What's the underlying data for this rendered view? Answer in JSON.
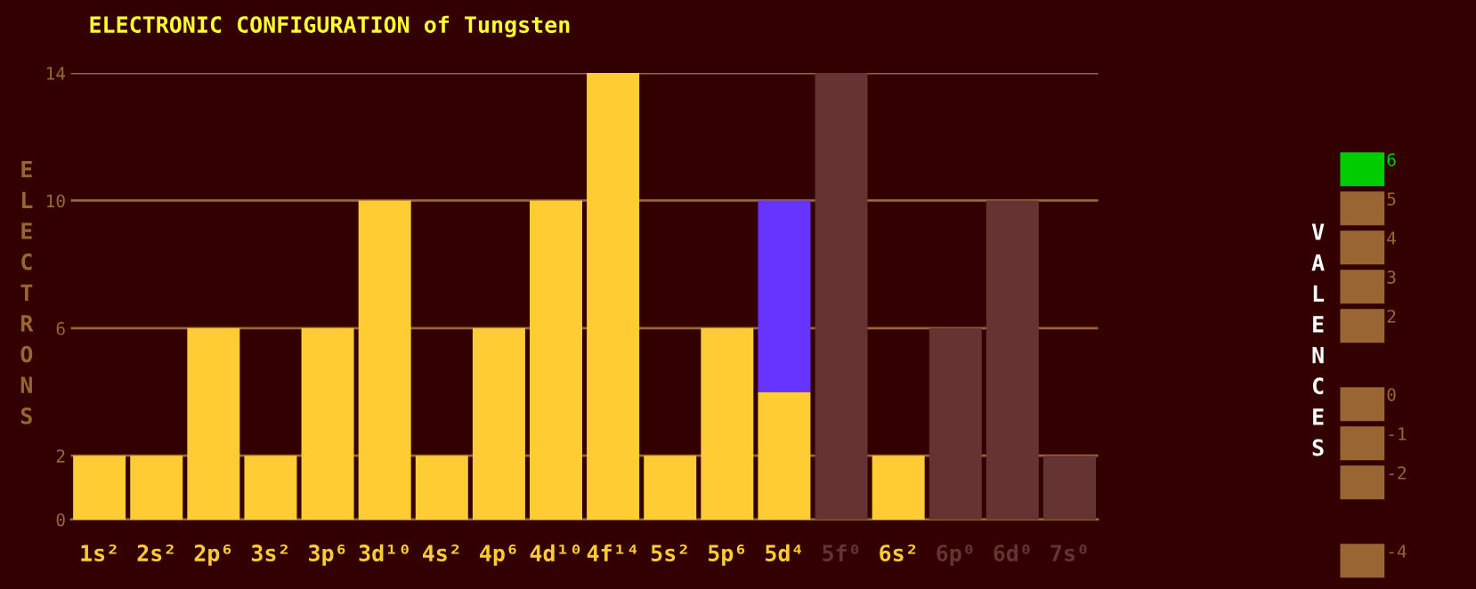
{
  "chart_data": [
    {
      "type": "bar",
      "title": "ELECTRONIC CONFIGURATION of Tungsten",
      "ylabel": "ELECTRONS",
      "stacked": true,
      "grid": "y",
      "categories": [
        "1s²",
        "2s²",
        "2p⁶",
        "3s²",
        "3p⁶",
        "3d¹⁰",
        "4s²",
        "4p⁶",
        "4d¹⁰",
        "4f¹⁴",
        "5s²",
        "5p⁶",
        "5d⁴",
        "5f⁰",
        "6s²",
        "6p⁰",
        "6d⁰",
        "7s⁰"
      ],
      "series": [
        {
          "color": "#ffcc33",
          "values": [
            2,
            2,
            6,
            2,
            6,
            10,
            2,
            6,
            10,
            14,
            2,
            6,
            4,
            0,
            2,
            0,
            0,
            0
          ]
        },
        {
          "color": "#6633ff",
          "values": [
            0,
            0,
            0,
            0,
            0,
            0,
            0,
            0,
            0,
            0,
            0,
            0,
            6,
            0,
            0,
            0,
            0,
            0
          ]
        },
        {
          "color": "#663333",
          "values": [
            0,
            0,
            0,
            0,
            0,
            0,
            0,
            0,
            0,
            0,
            0,
            0,
            0,
            14,
            0,
            6,
            10,
            2
          ]
        }
      ],
      "ylim": [
        0,
        14
      ],
      "yticks": [
        0,
        2,
        6,
        10,
        14
      ]
    },
    {
      "type": "other",
      "ylabel": "VALENCES",
      "data_labels": true,
      "values": [
        6,
        5,
        4,
        3,
        2,
        0,
        -1,
        -2,
        -4
      ],
      "colors": [
        "#00cc00",
        "#996633",
        "#996633",
        "#996633",
        "#996633",
        "#996633",
        "#996633",
        "#996633",
        "#996633"
      ]
    }
  ]
}
